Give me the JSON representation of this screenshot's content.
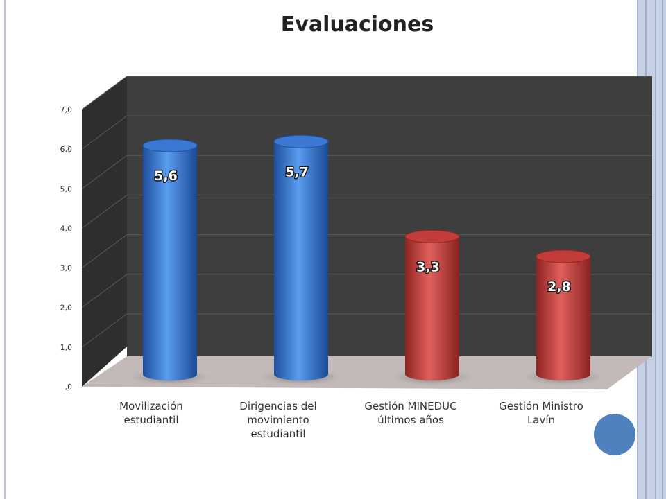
{
  "colors": {
    "blue": "#3f7fd8",
    "red": "#c9403d",
    "wall": "#3e3e3e",
    "floor": "#c4b9b9"
  },
  "chart_data": {
    "type": "bar",
    "title": "Evaluaciones",
    "categories": [
      [
        "Movilización",
        "estudiantil"
      ],
      [
        "Dirigencias del",
        "movimiento",
        "estudiantil"
      ],
      [
        "Gestión MINEDUC",
        "últimos años"
      ],
      [
        "Gestión Ministro",
        "Lavín"
      ]
    ],
    "values": [
      5.6,
      5.7,
      3.3,
      2.8
    ],
    "value_labels": [
      "5,6",
      "5,7",
      "3,3",
      "2,8"
    ],
    "bar_colors": [
      "blue",
      "blue",
      "red",
      "red"
    ],
    "ylim": [
      0,
      7
    ],
    "yticks": [
      ",0",
      "1,0",
      "2,0",
      "3,0",
      "4,0",
      "5,0",
      "6,0",
      "7,0"
    ],
    "grid": true,
    "style": "3d-cylinder"
  }
}
